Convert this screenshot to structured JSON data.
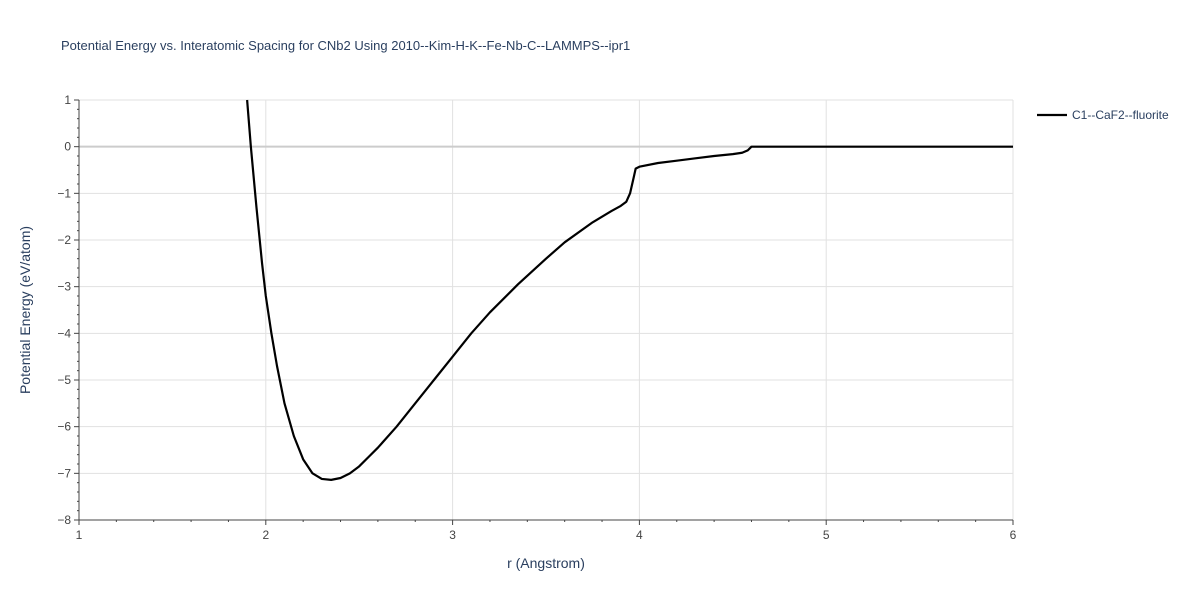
{
  "chart_data": {
    "type": "line",
    "title": "Potential Energy vs. Interatomic Spacing for CNb2 Using 2010--Kim-H-K--Fe-Nb-C--LAMMPS--ipr1",
    "xlabel": "r (Angstrom)",
    "ylabel": "Potential Energy (eV/atom)",
    "xlim": [
      1,
      6
    ],
    "ylim": [
      -8,
      1
    ],
    "xticks": [
      1,
      2,
      3,
      4,
      5,
      6
    ],
    "yticks": [
      1,
      0,
      -1,
      -2,
      -3,
      -4,
      -5,
      -6,
      -7,
      -8
    ],
    "grid": true,
    "legend_position": "top-right",
    "series": [
      {
        "name": "C1--CaF2--fluorite",
        "color": "#000000",
        "x": [
          1.9,
          1.92,
          1.95,
          1.98,
          2.0,
          2.03,
          2.06,
          2.1,
          2.15,
          2.2,
          2.25,
          2.3,
          2.35,
          2.4,
          2.45,
          2.5,
          2.55,
          2.6,
          2.7,
          2.8,
          2.9,
          3.0,
          3.1,
          3.2,
          3.35,
          3.5,
          3.6,
          3.75,
          3.85,
          3.9,
          3.93,
          3.95,
          3.97,
          3.98,
          4.0,
          4.1,
          4.2,
          4.3,
          4.4,
          4.5,
          4.55,
          4.58,
          4.6,
          4.7,
          5.0,
          5.5,
          6.0
        ],
        "y": [
          1.0,
          0.0,
          -1.3,
          -2.5,
          -3.2,
          -4.0,
          -4.7,
          -5.5,
          -6.2,
          -6.7,
          -7.0,
          -7.12,
          -7.14,
          -7.1,
          -7.0,
          -6.85,
          -6.65,
          -6.45,
          -6.0,
          -5.5,
          -5.0,
          -4.5,
          -4.0,
          -3.55,
          -2.95,
          -2.4,
          -2.05,
          -1.62,
          -1.38,
          -1.27,
          -1.18,
          -1.0,
          -0.65,
          -0.47,
          -0.43,
          -0.35,
          -0.3,
          -0.25,
          -0.2,
          -0.16,
          -0.13,
          -0.08,
          0.0,
          0.0,
          0.0,
          0.0,
          0.0
        ]
      }
    ]
  }
}
